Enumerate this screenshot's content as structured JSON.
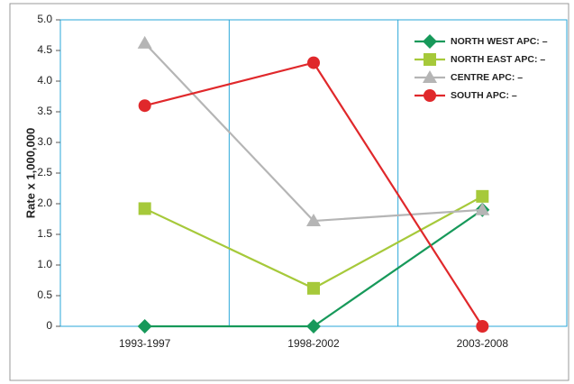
{
  "chart_data": {
    "type": "line",
    "y_label": "Rate x 1,000,000",
    "categories": [
      "1993-1997",
      "1998-2002",
      "2003-2008"
    ],
    "series": [
      {
        "name": "NORTH WEST APC: –",
        "color": "#17995a",
        "marker": "diamond",
        "values": [
          0,
          0,
          1.9
        ]
      },
      {
        "name": "NORTH EAST APC: –",
        "color": "#a6c93a",
        "marker": "square",
        "values": [
          1.92,
          0.62,
          2.12
        ]
      },
      {
        "name": "CENTRE APC: –",
        "color": "#b5b5b5",
        "marker": "triangle",
        "values": [
          4.62,
          1.72,
          1.9
        ]
      },
      {
        "name": "SOUTH APC: –",
        "color": "#e0282b",
        "marker": "circle",
        "values": [
          3.6,
          4.3,
          0
        ]
      }
    ],
    "ylim": [
      0,
      5
    ],
    "yticks": [
      0,
      0.5,
      {
        "value": 1,
        "label": "1.0"
      },
      1.5,
      {
        "value": 2,
        "label": "2.0"
      },
      2.5,
      {
        "value": 3,
        "label": "3.0"
      },
      3.5,
      {
        "value": 4,
        "label": "4.0"
      },
      4.5,
      {
        "value": 5,
        "label": "5.0"
      }
    ],
    "xgrid": true,
    "grid_color": "#2aa7d9",
    "legend": "upper right"
  }
}
